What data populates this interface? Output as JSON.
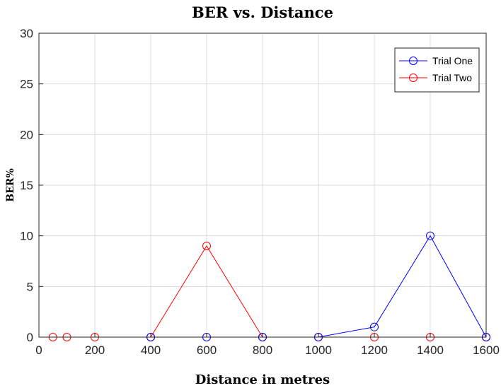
{
  "chart_data": {
    "type": "line",
    "title": "BER vs. Distance",
    "xlabel": "Distance in metres",
    "ylabel": "BER%",
    "xlim": [
      0,
      1600
    ],
    "ylim": [
      0,
      30
    ],
    "xticks": [
      0,
      200,
      400,
      600,
      800,
      1000,
      1200,
      1400,
      1600
    ],
    "yticks": [
      0,
      5,
      10,
      15,
      20,
      25,
      30
    ],
    "grid": true,
    "legend_position": "top-right",
    "series": [
      {
        "name": "Trial One",
        "color": "#0000ff",
        "marker": "circle",
        "x": [
          400,
          600,
          800,
          1000,
          1200,
          1400,
          1600
        ],
        "y": [
          0,
          0,
          0,
          0,
          1,
          10,
          0
        ]
      },
      {
        "name": "Trial Two",
        "color": "#ff0000",
        "marker": "circle",
        "x": [
          50,
          100,
          200,
          400,
          600,
          800,
          1000,
          1200,
          1400,
          1600
        ],
        "y": [
          0,
          0,
          0,
          0,
          9,
          0,
          0,
          0,
          0,
          0
        ]
      }
    ]
  }
}
